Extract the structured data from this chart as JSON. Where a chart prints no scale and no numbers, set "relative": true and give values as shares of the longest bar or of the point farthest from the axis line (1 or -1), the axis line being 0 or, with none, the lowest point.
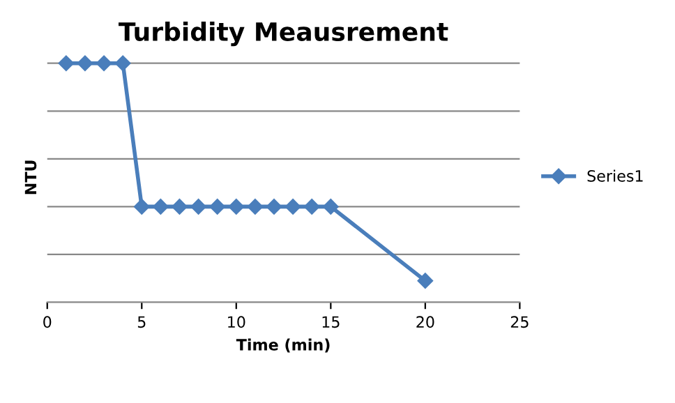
{
  "chart_data": {
    "type": "line",
    "title": "Turbidity Meausrement",
    "xlabel": "Time (min)",
    "ylabel": "NTU",
    "x": [
      1,
      2,
      3,
      4,
      5,
      6,
      7,
      8,
      9,
      10,
      11,
      12,
      13,
      14,
      15,
      20
    ],
    "series": [
      {
        "name": "Series1",
        "color": "#4a7ebb",
        "values": [
          1,
          1,
          1,
          1,
          0.4,
          0.4,
          0.4,
          0.4,
          0.4,
          0.4,
          0.4,
          0.4,
          0.4,
          0.4,
          0.4,
          0.09
        ]
      }
    ],
    "relative": true,
    "xlim": [
      0,
      25
    ],
    "xticks": [
      0,
      5,
      10,
      15,
      20,
      25
    ],
    "grid": "y",
    "legend": "right",
    "marker": "diamond",
    "line_style": "solid"
  }
}
